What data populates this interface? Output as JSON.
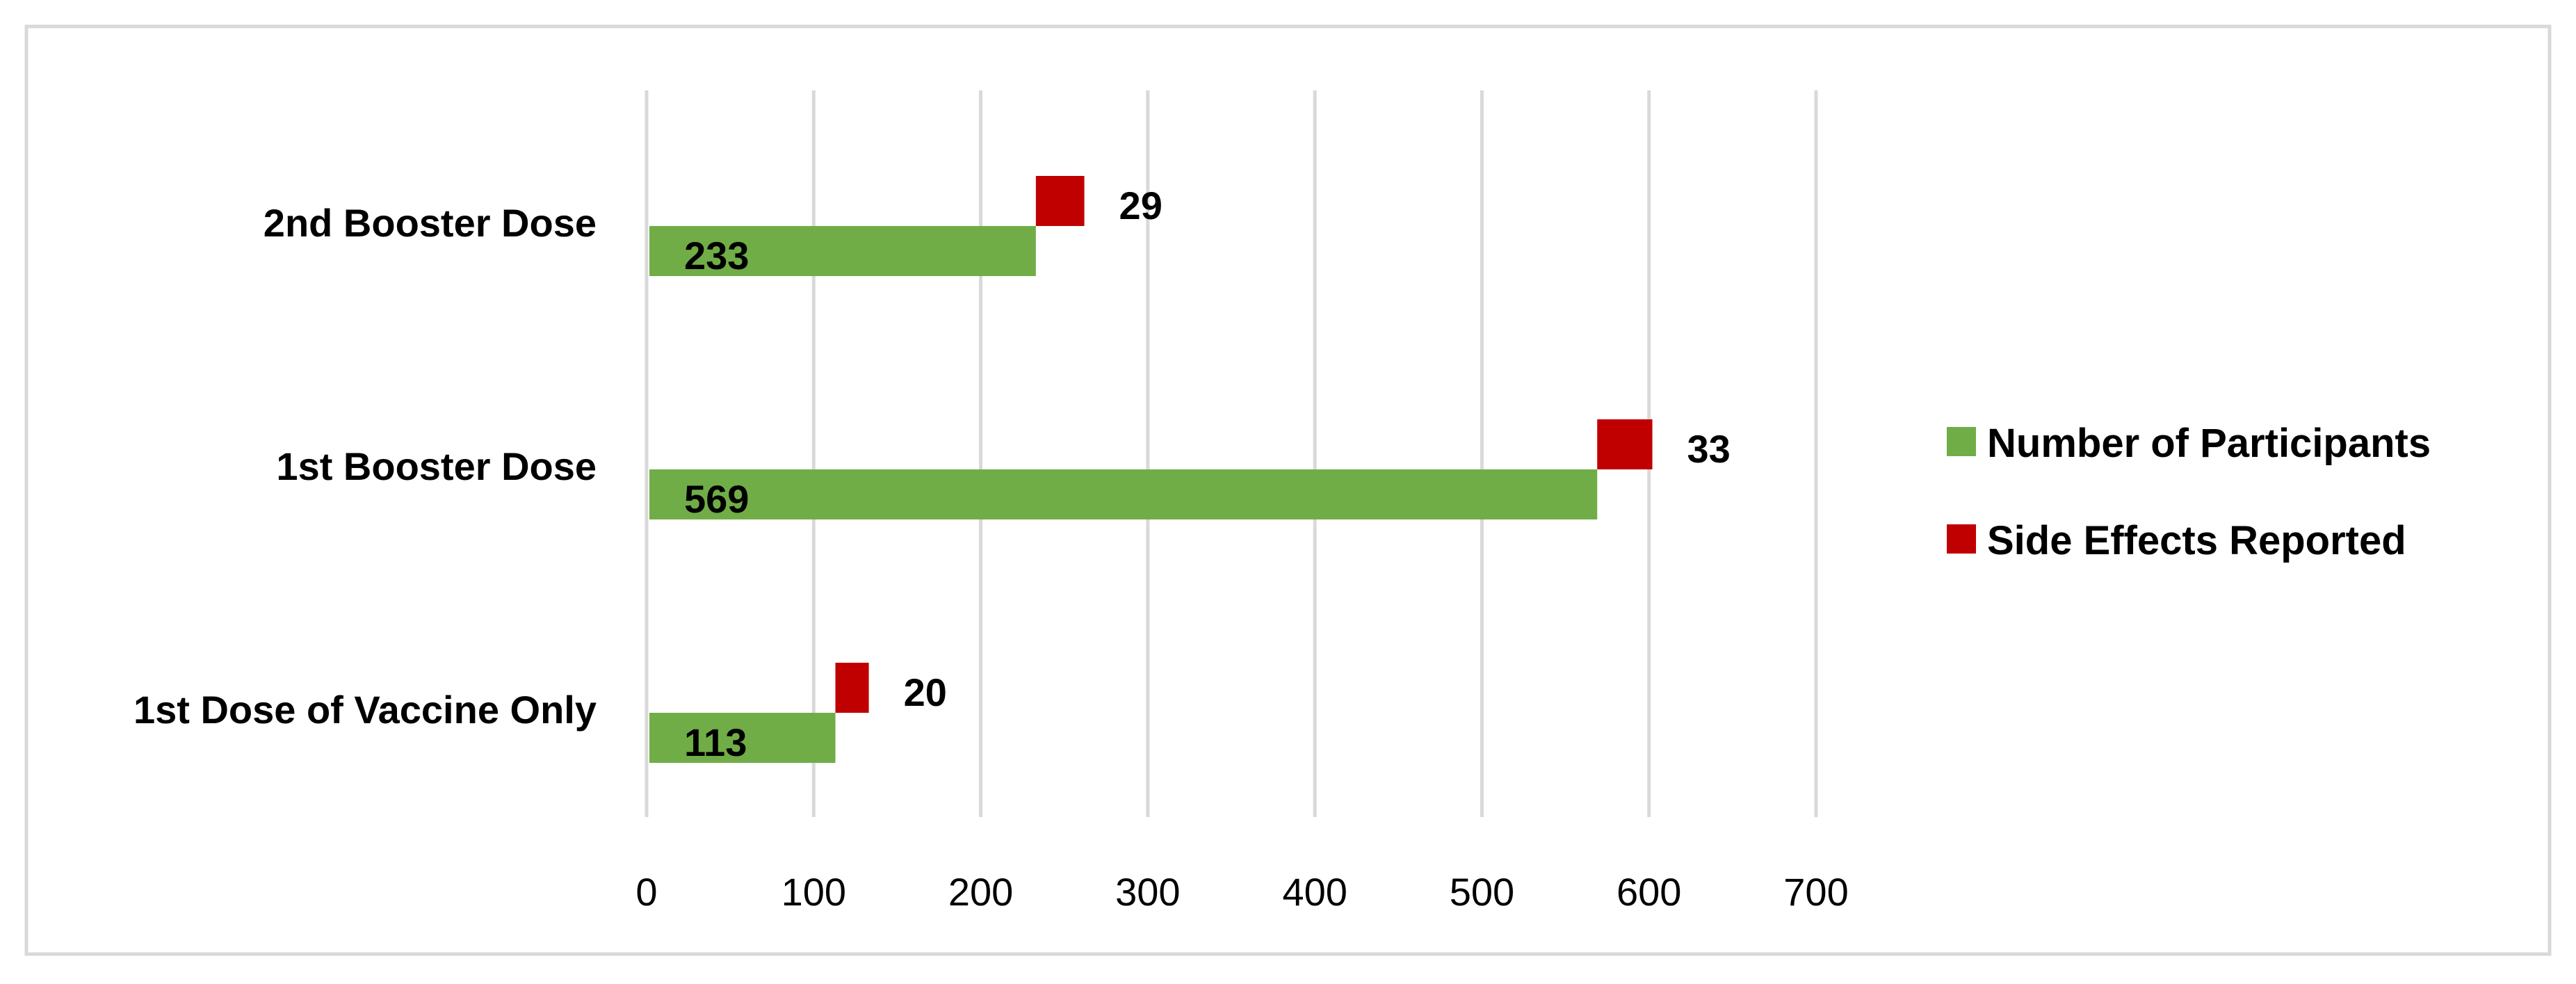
{
  "chart_data": {
    "type": "bar",
    "orientation": "horizontal",
    "categories": [
      "2nd Booster Dose",
      "1st Booster Dose",
      "1st Dose of Vaccine Only"
    ],
    "series": [
      {
        "name": "Number of Participants",
        "values": [
          233,
          569,
          113
        ],
        "color": "#70ad47",
        "labels": [
          "233",
          "569",
          "113"
        ]
      },
      {
        "name": "Side Effects Reported",
        "values": [
          29,
          33,
          20
        ],
        "color": "#c00000",
        "labels": [
          "29",
          "33",
          "20"
        ]
      }
    ],
    "side_effects_stacked_after_participants": true,
    "xlim": [
      0,
      700
    ],
    "xticks": [
      0,
      100,
      200,
      300,
      400,
      500,
      600,
      700
    ],
    "xtick_labels": [
      "0",
      "100",
      "200",
      "300",
      "400",
      "500",
      "600",
      "700"
    ],
    "grid": "vertical",
    "legend_position": "right",
    "title": "",
    "xlabel": "",
    "ylabel": ""
  }
}
